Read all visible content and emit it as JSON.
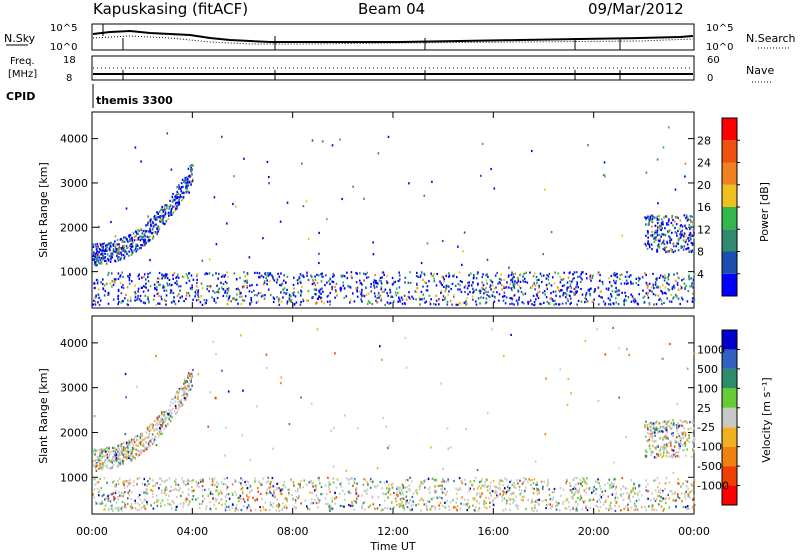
{
  "header": {
    "station": "Kapuskasing (fitACF)",
    "beam": "Beam 04",
    "date": "09/Mar/2012"
  },
  "nsky_panel": {
    "left_label": "N.Sky",
    "right_label": "N.Search",
    "left_ticks": [
      "10^5",
      "10^0"
    ],
    "right_ticks": [
      "10^5",
      "10^0"
    ]
  },
  "freq_panel": {
    "left_label_1": "Freq.",
    "left_label_2": "[MHz]",
    "right_label": "Nave",
    "left_ticks": [
      "18",
      "8"
    ],
    "right_ticks": [
      "60",
      "0"
    ]
  },
  "cpid_panel": {
    "label": "CPID",
    "program": "themis 3300"
  },
  "colors": {
    "power_scale": [
      "#0000ff",
      "#1a4fb0",
      "#2f8a6e",
      "#33b64a",
      "#f0c020",
      "#f08020",
      "#f05010",
      "#ff0000"
    ],
    "velocity_scale": [
      "#0000cc",
      "#3060c0",
      "#2d8c6a",
      "#66cc33",
      "#c8c8c8",
      "#f0b020",
      "#f08010",
      "#f04000",
      "#ff0000"
    ]
  },
  "chart_data": [
    {
      "type": "heatmap",
      "title": "Power",
      "ylabel": "Slant Range [km]",
      "xlabel": "Time UT",
      "ylim": [
        180,
        4600
      ],
      "yticks": [
        1000,
        2000,
        3000,
        4000
      ],
      "xticks": [
        "00:00",
        "04:00",
        "08:00",
        "12:00",
        "16:00",
        "20:00",
        "00:00"
      ],
      "colorbar": {
        "label": "Power [dB]",
        "ticks": [
          "4",
          "8",
          "12",
          "16",
          "20",
          "24",
          "28"
        ],
        "range": [
          0,
          30
        ]
      }
    },
    {
      "type": "heatmap",
      "title": "Velocity",
      "ylabel": "Slant Range [km]",
      "xlabel": "Time UT",
      "ylim": [
        180,
        4600
      ],
      "yticks": [
        1000,
        2000,
        3000,
        4000
      ],
      "xticks": [
        "00:00",
        "04:00",
        "08:00",
        "12:00",
        "16:00",
        "20:00",
        "00:00"
      ],
      "colorbar": {
        "label": "Velocity [m s⁻¹]",
        "ticks": [
          "1000",
          "500",
          "100",
          "25",
          "-25",
          "-100",
          "-500",
          "-1000"
        ]
      }
    }
  ],
  "x_axis": {
    "label": "Time UT",
    "ticks": [
      "00:00",
      "04:00",
      "08:00",
      "12:00",
      "16:00",
      "20:00",
      "00:00"
    ]
  }
}
